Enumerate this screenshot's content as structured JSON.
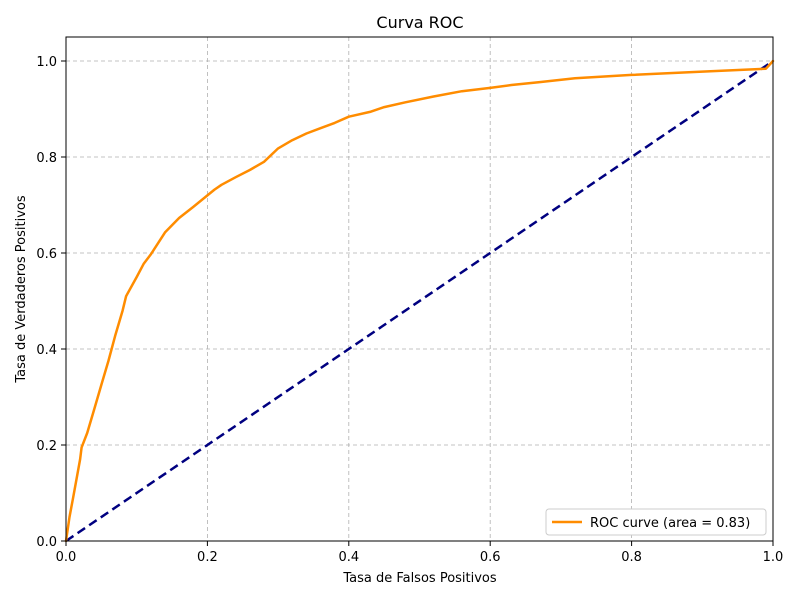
{
  "chart_data": {
    "type": "line",
    "title": "Curva ROC",
    "xlabel": "Tasa de Falsos Positivos",
    "ylabel": "Tasa de Verdaderos Positivos",
    "xlim": [
      0.0,
      1.0
    ],
    "ylim": [
      0.0,
      1.05
    ],
    "xticks": [
      "0.0",
      "0.2",
      "0.4",
      "0.6",
      "0.8",
      "1.0"
    ],
    "yticks": [
      "0.0",
      "0.2",
      "0.4",
      "0.6",
      "0.8",
      "1.0"
    ],
    "grid": true,
    "legend_position": "lower-right",
    "series": [
      {
        "name": "ROC curve (area = 0.83)",
        "color": "#ff8c00",
        "style": "solid",
        "x": [
          0.0,
          0.005,
          0.01,
          0.015,
          0.02,
          0.022,
          0.03,
          0.04,
          0.05,
          0.06,
          0.07,
          0.08,
          0.085,
          0.1,
          0.11,
          0.12,
          0.14,
          0.16,
          0.18,
          0.2,
          0.21,
          0.22,
          0.24,
          0.26,
          0.28,
          0.3,
          0.32,
          0.34,
          0.36,
          0.38,
          0.4,
          0.43,
          0.45,
          0.48,
          0.52,
          0.56,
          0.6,
          0.63,
          0.67,
          0.72,
          0.8,
          0.9,
          0.99,
          1.0
        ],
        "y": [
          0.0,
          0.05,
          0.09,
          0.13,
          0.17,
          0.195,
          0.225,
          0.275,
          0.325,
          0.375,
          0.43,
          0.48,
          0.51,
          0.55,
          0.578,
          0.597,
          0.643,
          0.673,
          0.696,
          0.72,
          0.732,
          0.742,
          0.758,
          0.773,
          0.79,
          0.818,
          0.835,
          0.849,
          0.86,
          0.871,
          0.884,
          0.894,
          0.904,
          0.914,
          0.926,
          0.937,
          0.944,
          0.95,
          0.956,
          0.964,
          0.971,
          0.978,
          0.984,
          1.0
        ]
      },
      {
        "name": "",
        "color": "#000080",
        "style": "dashed",
        "x": [
          0.0,
          1.0
        ],
        "y": [
          0.0,
          1.0
        ]
      }
    ]
  }
}
